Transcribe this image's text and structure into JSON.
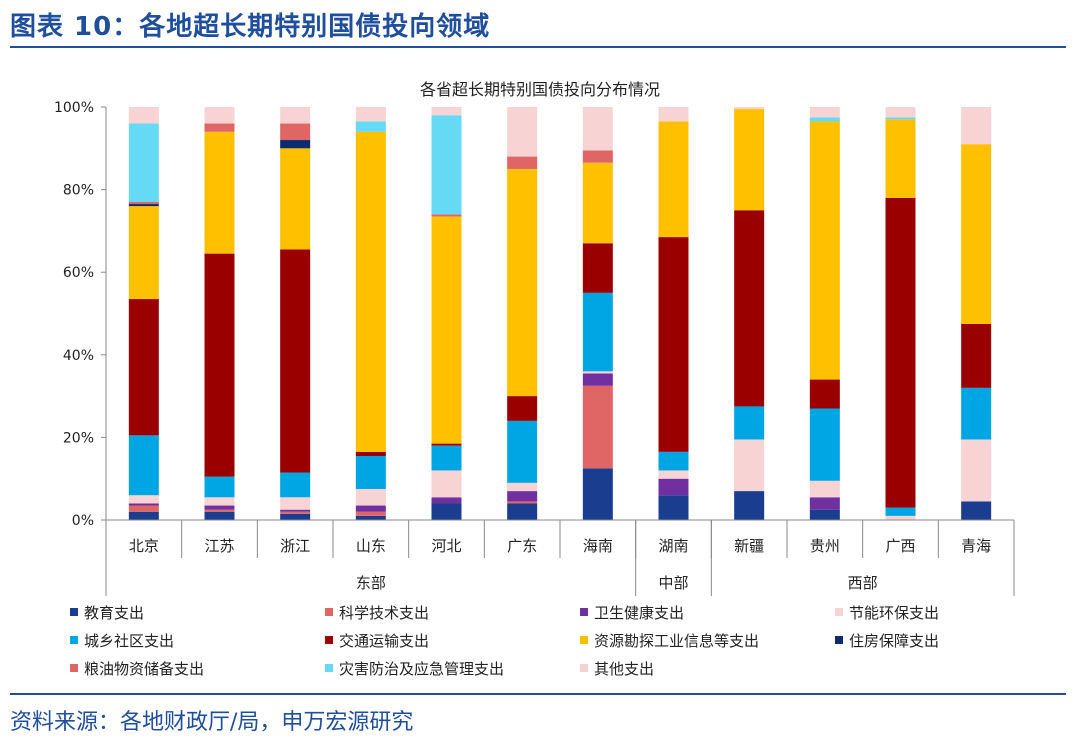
{
  "figure": {
    "title": "图表 10：各地超长期特别国债投向领域",
    "source": "资料来源：各地财政厅/局，申万宏源研究"
  },
  "chart_data": {
    "type": "bar",
    "stacked": true,
    "title": "各省超长期特别国债投向分布情况",
    "ylim": [
      0,
      100
    ],
    "yticks": [
      "0%",
      "20%",
      "40%",
      "60%",
      "80%",
      "100%"
    ],
    "categories": [
      "北京",
      "江苏",
      "浙江",
      "山东",
      "河北",
      "广东",
      "海南",
      "湖南",
      "新疆",
      "贵州",
      "广西",
      "青海"
    ],
    "groups": [
      {
        "label": "东部",
        "span": 7
      },
      {
        "label": "中部",
        "span": 1
      },
      {
        "label": "西部",
        "span": 4
      }
    ],
    "series": [
      {
        "name": "教育支出",
        "color": "#1a3d8f",
        "values": [
          2,
          2,
          1.5,
          1,
          4,
          4,
          12.5,
          6,
          7,
          2.5,
          0,
          4.5
        ]
      },
      {
        "name": "科学技术支出",
        "color": "#e06666",
        "values": [
          1.5,
          0.5,
          0.5,
          1,
          0,
          0.5,
          20,
          0,
          0,
          0,
          0,
          0
        ]
      },
      {
        "name": "卫生健康支出",
        "color": "#7030a0",
        "values": [
          0.5,
          1,
          0.5,
          1.5,
          1.5,
          2.5,
          3,
          4,
          0,
          3,
          0,
          0
        ]
      },
      {
        "name": "节能环保支出",
        "color": "#f8d3d3",
        "values": [
          2,
          2,
          3,
          4,
          6.5,
          2,
          0.5,
          2,
          12.5,
          4,
          1,
          15
        ]
      },
      {
        "name": "城乡社区支出",
        "color": "#00a5e3",
        "values": [
          14.5,
          5,
          6,
          8,
          6,
          15,
          19,
          4.5,
          8,
          17.5,
          2,
          12.5
        ]
      },
      {
        "name": "交通运输支出",
        "color": "#9b0000",
        "values": [
          33,
          54,
          54,
          1,
          0.5,
          6,
          12,
          52,
          47.5,
          7,
          75,
          15.5
        ]
      },
      {
        "name": "资源勘探工业信息等支出",
        "color": "#ffc000",
        "values": [
          22.5,
          29.5,
          24.5,
          77.5,
          55,
          55,
          19.5,
          28,
          24.5,
          62.5,
          19,
          43.5
        ]
      },
      {
        "name": "住房保障支出",
        "color": "#0b2a6f",
        "values": [
          0.5,
          0,
          2,
          0,
          0,
          0,
          0,
          0,
          0,
          0,
          0,
          0
        ]
      },
      {
        "name": "粮油物资储备支出",
        "color": "#e06666",
        "values": [
          0.5,
          2,
          4,
          0,
          0.5,
          3,
          3,
          0,
          0,
          0,
          0,
          0
        ]
      },
      {
        "name": "灾害防治及应急管理支出",
        "color": "#66d9f5",
        "values": [
          19,
          0,
          0,
          2.5,
          24,
          0,
          0,
          0,
          0,
          1,
          0.5,
          0
        ]
      },
      {
        "name": "其他支出",
        "color": "#f8d3d3",
        "values": [
          4,
          4,
          4,
          3.5,
          2,
          12,
          10.5,
          3.5,
          0.5,
          2.5,
          2.5,
          9
        ]
      }
    ]
  }
}
